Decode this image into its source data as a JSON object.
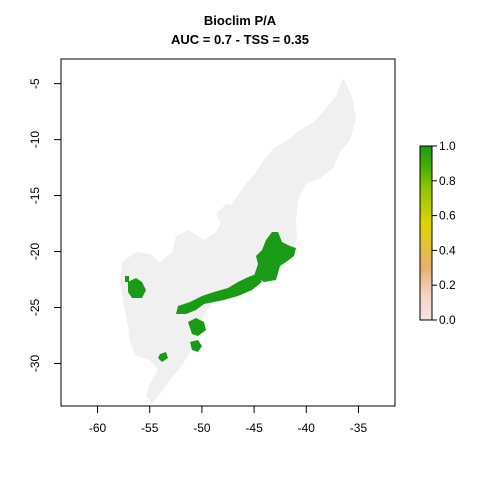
{
  "title": "Bioclim P/A",
  "subtitle": "AUC = 0.7 - TSS = 0.35",
  "map": {
    "x_ticks": [
      -60,
      -55,
      -50,
      -45,
      -40,
      -35
    ],
    "y_ticks": [
      -5,
      -10,
      -15,
      -20,
      -25,
      -30
    ],
    "x_range": [
      -63.5,
      -31.5
    ],
    "y_range": [
      -33.8,
      -2.8
    ],
    "background_color": "#f0f0f0",
    "presence_color": "#1a9b16"
  },
  "legend": {
    "ticks": [
      "1.0",
      "0.8",
      "0.6",
      "0.4",
      "0.2",
      "0.0"
    ],
    "colors": [
      "#1a9b16",
      "#48ae00",
      "#93c700",
      "#ddd500",
      "#e7b06e",
      "#f3d2c4",
      "#f5e6e1"
    ]
  }
}
